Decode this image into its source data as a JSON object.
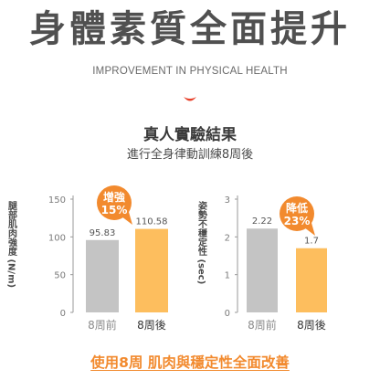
{
  "headline": "身體素質全面提升",
  "subheadline": "IMPROVEMENT IN PHYSICAL HEALTH",
  "section_title": "真人實驗結果",
  "section_subtitle": "進行全身律動訓練8周後",
  "footer": "使用8周 肌肉與穩定性全面改善",
  "colors": {
    "before": "#c4c4c4",
    "after": "#fdbe5e",
    "badge": "#f28a2e",
    "accent": "#f28a2e"
  },
  "chart_data": [
    {
      "type": "bar",
      "ylabel": "腿部肌肉強度 (N/m)",
      "categories": [
        "8周前",
        "8周後"
      ],
      "values": [
        95.83,
        110.58
      ],
      "value_labels": [
        "95.83",
        "110.58"
      ],
      "ylim": [
        0,
        150
      ],
      "yticks": [
        0,
        50,
        100,
        150
      ],
      "badge": {
        "title": "增強",
        "value": "15%"
      }
    },
    {
      "type": "bar",
      "ylabel": "姿勢不穩定性 (sec)",
      "categories": [
        "8周前",
        "8周後"
      ],
      "values": [
        2.22,
        1.7
      ],
      "value_labels": [
        "2.22",
        "1.7"
      ],
      "ylim": [
        0,
        3
      ],
      "yticks": [
        0,
        1,
        2,
        3
      ],
      "badge": {
        "title": "降低",
        "value": "23%"
      }
    }
  ]
}
